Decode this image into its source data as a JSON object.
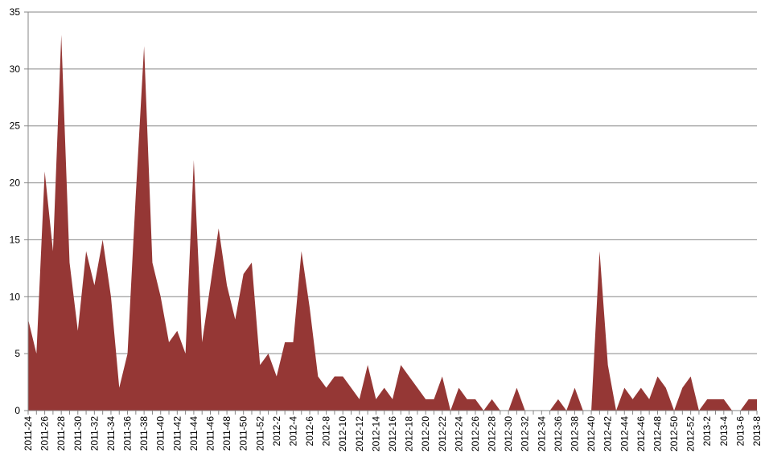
{
  "chart_data": {
    "type": "area",
    "title": "",
    "xlabel": "",
    "ylabel": "",
    "ylim": [
      0,
      35
    ],
    "yticks": [
      0,
      5,
      10,
      15,
      20,
      25,
      30,
      35
    ],
    "grid": true,
    "legend": "none",
    "colors": {
      "fill": "#953735",
      "grid": "#868686",
      "axis": "#868686"
    },
    "x": [
      "2011-24",
      "2011-25",
      "2011-26",
      "2011-27",
      "2011-28",
      "2011-29",
      "2011-30",
      "2011-31",
      "2011-32",
      "2011-33",
      "2011-34",
      "2011-35",
      "2011-36",
      "2011-37",
      "2011-38",
      "2011-39",
      "2011-40",
      "2011-41",
      "2011-42",
      "2011-43",
      "2011-44",
      "2011-45",
      "2011-46",
      "2011-47",
      "2011-48",
      "2011-49",
      "2011-50",
      "2011-51",
      "2011-52",
      "2012-1",
      "2012-2",
      "2012-3",
      "2012-4",
      "2012-5",
      "2012-6",
      "2012-7",
      "2012-8",
      "2012-9",
      "2012-10",
      "2012-11",
      "2012-12",
      "2012-13",
      "2012-14",
      "2012-15",
      "2012-16",
      "2012-17",
      "2012-18",
      "2012-19",
      "2012-20",
      "2012-21",
      "2012-22",
      "2012-23",
      "2012-24",
      "2012-25",
      "2012-26",
      "2012-27",
      "2012-28",
      "2012-29",
      "2012-30",
      "2012-31",
      "2012-32",
      "2012-33",
      "2012-34",
      "2012-35",
      "2012-36",
      "2012-37",
      "2012-38",
      "2012-39",
      "2012-40",
      "2012-41",
      "2012-42",
      "2012-43",
      "2012-44",
      "2012-45",
      "2012-46",
      "2012-47",
      "2012-48",
      "2012-49",
      "2012-50",
      "2012-51",
      "2012-52",
      "2013-1",
      "2013-2",
      "2013-3",
      "2013-4",
      "2013-5",
      "2013-6",
      "2013-7",
      "2013-8"
    ],
    "x_tick_labels": [
      "2011-24",
      "2011-26",
      "2011-28",
      "2011-30",
      "2011-32",
      "2011-34",
      "2011-36",
      "2011-38",
      "2011-40",
      "2011-42",
      "2011-44",
      "2011-46",
      "2011-48",
      "2011-50",
      "2011-52",
      "2012-2",
      "2012-4",
      "2012-6",
      "2012-8",
      "2012-10",
      "2012-12",
      "2012-14",
      "2012-16",
      "2012-18",
      "2012-20",
      "2012-22",
      "2012-24",
      "2012-26",
      "2012-28",
      "2012-30",
      "2012-32",
      "2012-34",
      "2012-36",
      "2012-38",
      "2012-40",
      "2012-42",
      "2012-44",
      "2012-46",
      "2012-48",
      "2012-50",
      "2012-52",
      "2013-2",
      "2013-4",
      "2013-6",
      "2013-8"
    ],
    "values": [
      8,
      5,
      21,
      14,
      33,
      13,
      7,
      14,
      11,
      15,
      10,
      2,
      5,
      19,
      32,
      13,
      10,
      6,
      7,
      5,
      22,
      6,
      11,
      16,
      11,
      8,
      12,
      13,
      4,
      5,
      3,
      6,
      6,
      14,
      9,
      3,
      2,
      3,
      3,
      2,
      1,
      4,
      1,
      2,
      1,
      4,
      3,
      2,
      1,
      1,
      3,
      0,
      2,
      1,
      1,
      0,
      1,
      0,
      0,
      2,
      0,
      0,
      0,
      0,
      1,
      0,
      2,
      0,
      0,
      14,
      4,
      0,
      2,
      1,
      2,
      1,
      3,
      2,
      0,
      2,
      3,
      0,
      1,
      1,
      1,
      0,
      0,
      1,
      1
    ]
  }
}
